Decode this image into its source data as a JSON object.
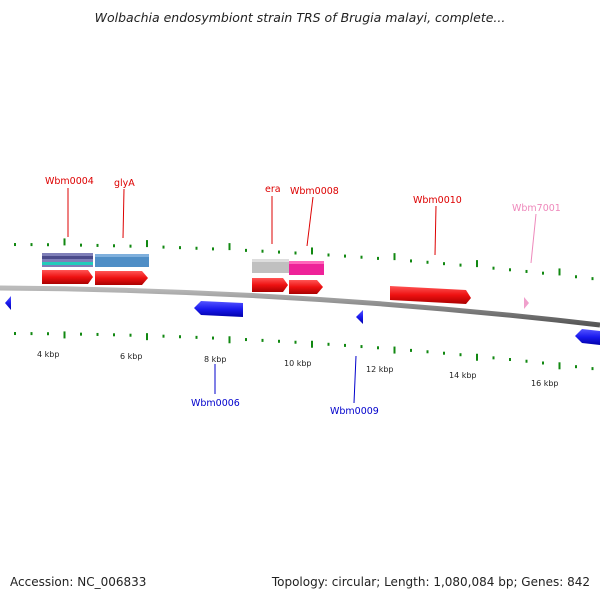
{
  "title": "Wolbachia endosymbiont strain TRS of Brugia malayi, complete...",
  "footer": {
    "accession": "Accession: NC_006833",
    "summary": "Topology: circular; Length: 1,080,084 bp; Genes: 842"
  },
  "colors": {
    "forward_gene": "#ee1111",
    "reverse_gene": "#1a1aee",
    "rna_gene": "#f0a0cc",
    "backbone": "#888888",
    "tick": "#118811"
  },
  "scale_labels": [
    "4 kbp",
    "6 kbp",
    "8 kbp",
    "10 kbp",
    "12 kbp",
    "14 kbp",
    "16 kbp"
  ],
  "genes_top": [
    {
      "name": "Wbm0004",
      "color": "#dd0000"
    },
    {
      "name": "glyA",
      "color": "#dd0000"
    },
    {
      "name": "era",
      "color": "#dd0000"
    },
    {
      "name": "Wbm0008",
      "color": "#dd0000"
    },
    {
      "name": "Wbm0010",
      "color": "#dd0000"
    },
    {
      "name": "Wbm7001",
      "color": "#ee88bb"
    }
  ],
  "genes_bottom": [
    {
      "name": "Wbm0006",
      "color": "#0000cc"
    },
    {
      "name": "Wbm0009",
      "color": "#0000cc"
    }
  ]
}
